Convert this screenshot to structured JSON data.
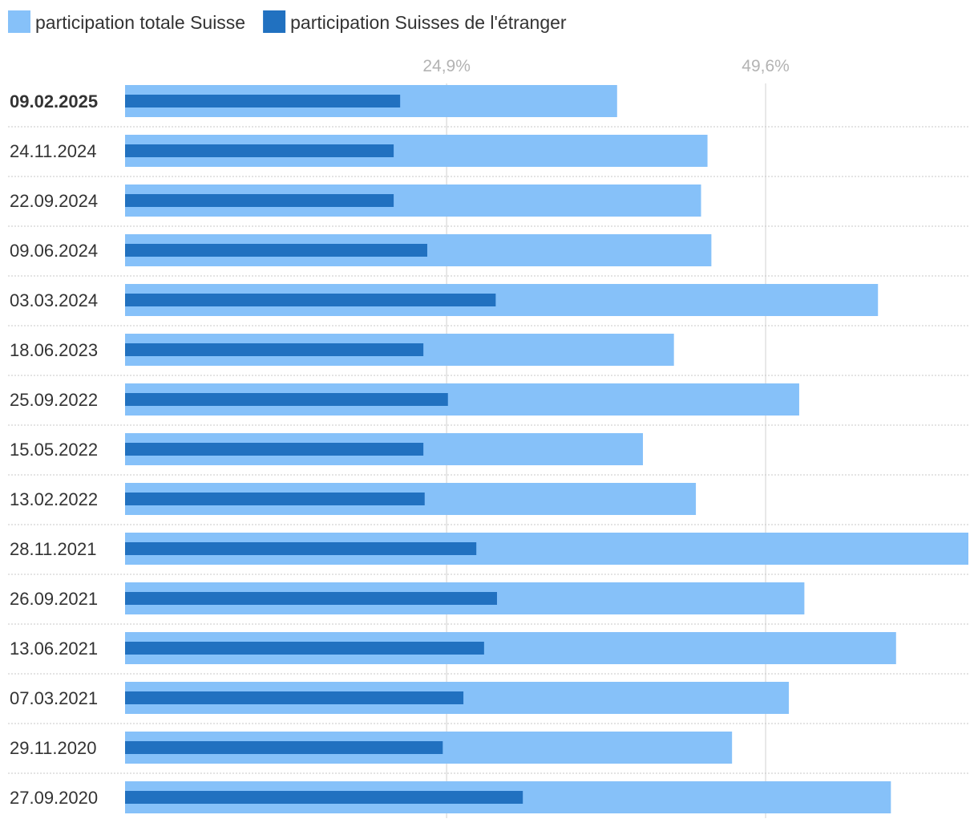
{
  "chart_data": {
    "type": "bar",
    "orientation": "horizontal",
    "legend": [
      {
        "name": "participation totale Suisse",
        "color": "#86c1f9"
      },
      {
        "name": "participation Suisses de l'étranger",
        "color": "#2171c0"
      }
    ],
    "x_ticks": [
      {
        "value": 24.9,
        "label": "24,9%"
      },
      {
        "value": 49.6,
        "label": "49,6%"
      }
    ],
    "xlim": [
      0,
      65.3
    ],
    "categories": [
      "09.02.2025",
      "24.11.2024",
      "22.09.2024",
      "09.06.2024",
      "03.03.2024",
      "18.06.2023",
      "25.09.2022",
      "15.05.2022",
      "13.02.2022",
      "28.11.2021",
      "26.09.2021",
      "13.06.2021",
      "07.03.2021",
      "29.11.2020",
      "27.09.2020"
    ],
    "series": [
      {
        "name": "participation totale Suisse",
        "values": [
          38.1,
          45.1,
          44.6,
          45.4,
          58.3,
          42.5,
          52.2,
          40.1,
          44.2,
          65.3,
          52.6,
          59.7,
          51.4,
          47.0,
          59.3
        ]
      },
      {
        "name": "participation Suisses de l'étranger",
        "values": [
          21.3,
          20.8,
          20.8,
          23.4,
          28.7,
          23.1,
          25.0,
          23.1,
          23.2,
          27.2,
          28.8,
          27.8,
          26.2,
          24.6,
          30.8
        ]
      }
    ]
  }
}
